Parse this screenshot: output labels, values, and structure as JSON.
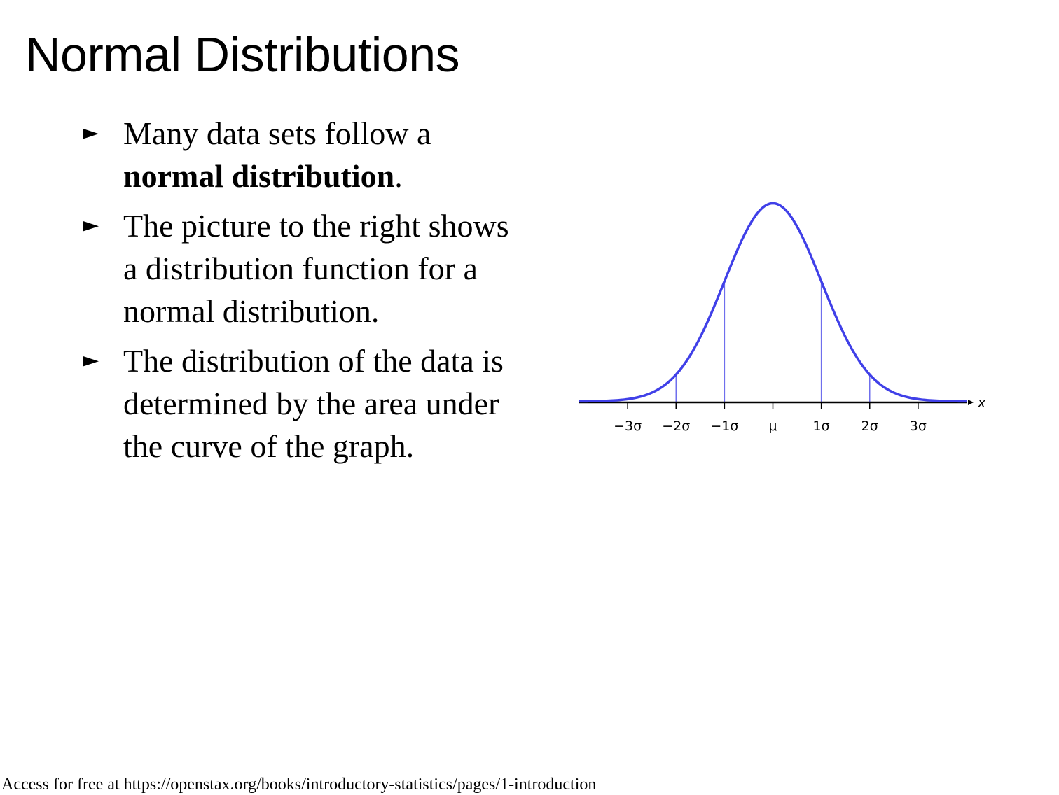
{
  "slide": {
    "title": "Normal Distributions",
    "bullets": [
      {
        "marker": "►",
        "text": "Many data sets follow a ",
        "bold": "normal distribution",
        "after": "."
      },
      {
        "marker": "►",
        "text": "The picture to the right shows a distribution function for a normal distribution."
      },
      {
        "marker": "►",
        "text": "The distribution of the data is determined by the area under the curve of the graph."
      }
    ],
    "footer": "Access for free at https://openstax.org/books/introductory-statistics/pages/1-introduction"
  },
  "chart_data": {
    "type": "line",
    "distribution": "normal",
    "mean": 0,
    "sd": 1,
    "xlim": [
      -4,
      4
    ],
    "tick_positions": [
      -3,
      -2,
      -1,
      0,
      1,
      2,
      3
    ],
    "tick_labels": [
      "−3σ",
      "−2σ",
      "−1σ",
      "μ",
      "1σ",
      "2σ",
      "3σ"
    ],
    "xlabel": "x",
    "reference_lines_at": [
      -2,
      -1,
      0,
      1,
      2
    ],
    "curve_color": "#4040e8",
    "axis_color": "#000000",
    "grid": false
  }
}
